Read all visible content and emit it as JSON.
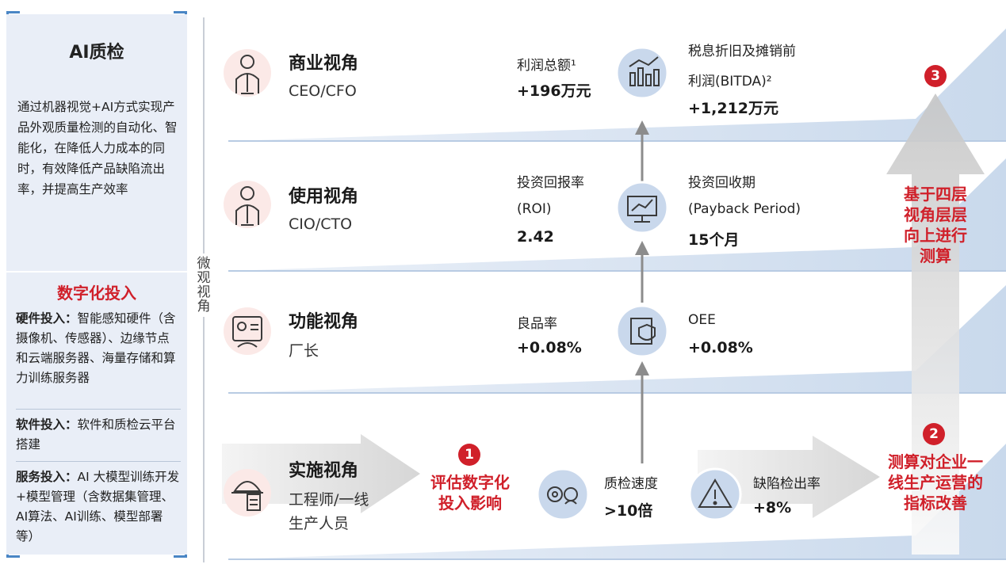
{
  "left_panel": {
    "ai_title": "AI质检",
    "ai_desc": "通过机器视觉+AI方式实现产品外观质量检测的自动化、智能化，在降低人力成本的同时，有效降低产品缺陷流出率，并提高生产效率",
    "digital_title": "数字化投入",
    "investments": [
      {
        "label": "硬件投入：",
        "text": "智能感知硬件（含摄像机、传感器）、边缘节点和云端服务器、海量存储和算力训练服务器"
      },
      {
        "label": "软件投入：",
        "text": "软件和质检云平台搭建"
      },
      {
        "label": "服务投入：",
        "text": "AI 大模型训练开发+模型管理（含数据集管理、AI算法、AI训练、模型部署等）"
      }
    ]
  },
  "vertical_label": "微观视角",
  "layers": [
    {
      "title": "商业视角",
      "role": "CEO/CFO",
      "left_label": "利润总额¹",
      "left_value": "+196万元",
      "right_label": "税息折旧及摊销前",
      "right_label2": "利润(BITDA)²",
      "right_value": "+1,212万元",
      "icon": "bar-chart-icon"
    },
    {
      "title": "使用视角",
      "role": "CIO/CTO",
      "left_label": "投资回报率",
      "left_label2": "(ROI)",
      "left_value": "2.42",
      "right_label": "投资回收期",
      "right_label2": "(Payback Period)",
      "right_value": "15个月",
      "icon": "monitor-chart-icon"
    },
    {
      "title": "功能视角",
      "role": "厂长",
      "left_label": "良品率",
      "left_value": "+0.08%",
      "right_label": "OEE",
      "right_value": "+0.08%",
      "icon": "shield-doc-icon"
    },
    {
      "title": "实施视角",
      "role": "工程师/一线",
      "role2": "生产人员",
      "left_label": "质检速度",
      "left_value": ">10倍",
      "right_label": "缺陷检出率",
      "right_value": "+8%",
      "icon": "gears-person-icon"
    }
  ],
  "steps": [
    {
      "number": "1",
      "text_lines": [
        "评估数字化",
        "投入影响"
      ]
    },
    {
      "number": "2",
      "text_lines": [
        "测算对企业一",
        "线生产运营的",
        "指标改善"
      ]
    },
    {
      "number": "3",
      "text_lines": [
        "基于四层",
        "视角层层",
        "向上进行",
        "测算"
      ]
    }
  ],
  "colors": {
    "accent_red": "#d0202a",
    "band_blue": "#dfe8f4",
    "band_line": "#b8cbe3",
    "arrow_gray": "#8c8c8c"
  }
}
